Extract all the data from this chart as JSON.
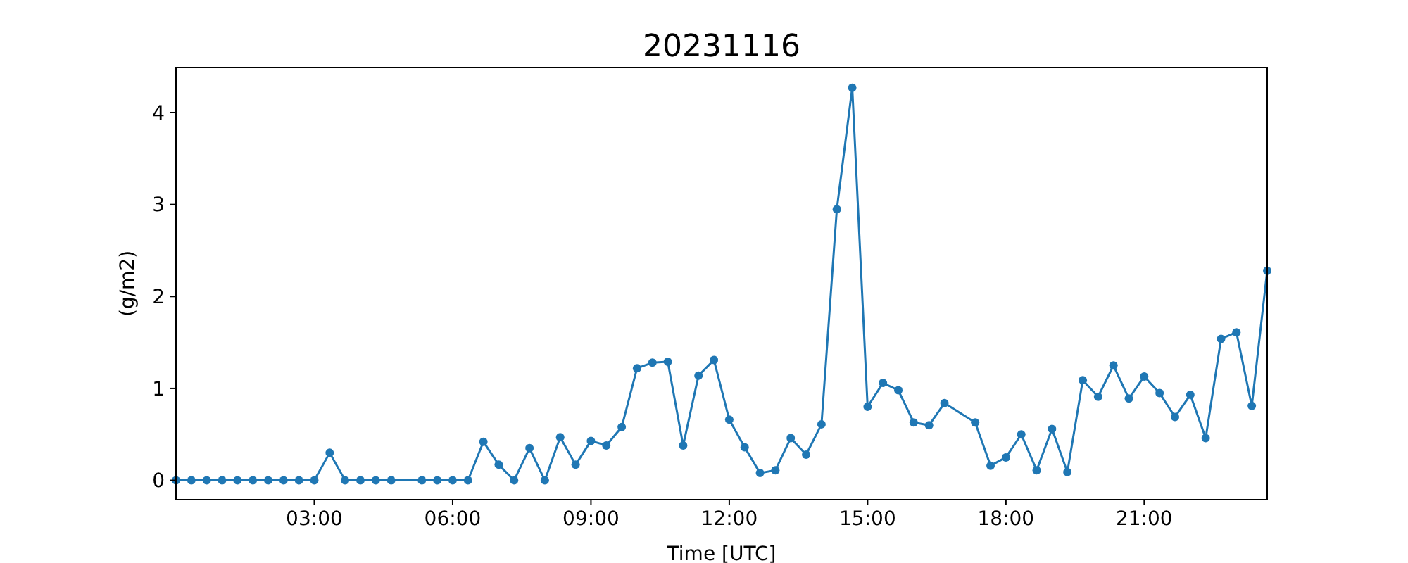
{
  "chart_data": {
    "type": "line",
    "title": "20231116",
    "xlabel": "Time [UTC]",
    "ylabel": "(g/m2)",
    "x": [
      0,
      0.333,
      0.667,
      1,
      1.333,
      1.667,
      2,
      2.333,
      2.667,
      3,
      3.333,
      3.667,
      4,
      4.333,
      4.667,
      5.333,
      5.667,
      6,
      6.333,
      6.667,
      7,
      7.333,
      7.667,
      8,
      8.333,
      8.667,
      9,
      9.333,
      9.667,
      10,
      10.333,
      10.667,
      11,
      11.333,
      11.667,
      12,
      12.333,
      12.667,
      13,
      13.333,
      13.667,
      14,
      14.333,
      14.667,
      15,
      15.333,
      15.667,
      16,
      16.333,
      16.667,
      17.333,
      17.667,
      18,
      18.333,
      18.667,
      19,
      19.333,
      19.667,
      20,
      20.333,
      20.667,
      21,
      21.333,
      21.667,
      22,
      22.333,
      22.667,
      23,
      23.333,
      23.667
    ],
    "series": [
      {
        "color": "#1f77b4",
        "values": [
          0,
          0,
          0,
          0,
          0,
          0,
          0,
          0,
          0,
          0,
          0.3,
          0,
          0,
          0,
          0,
          0,
          0,
          0,
          0,
          0.42,
          0.17,
          0,
          0.35,
          0,
          0.47,
          0.17,
          0.43,
          0.38,
          0.58,
          1.22,
          1.28,
          1.29,
          0.38,
          1.14,
          1.31,
          0.66,
          0.36,
          0.08,
          0.11,
          0.46,
          0.28,
          0.61,
          2.95,
          4.27,
          0.8,
          1.06,
          0.98,
          0.63,
          0.6,
          0.84,
          0.63,
          0.16,
          0.25,
          0.5,
          0.11,
          0.56,
          0.09,
          1.09,
          0.91,
          1.25,
          0.89,
          1.13,
          0.95,
          0.69,
          0.93,
          0.46,
          1.54,
          1.61,
          0.81,
          2.28
        ]
      }
    ],
    "xlim": [
      0,
      23.667
    ],
    "xticks": [
      {
        "value": 3,
        "label": "03:00"
      },
      {
        "value": 6,
        "label": "06:00"
      },
      {
        "value": 9,
        "label": "09:00"
      },
      {
        "value": 12,
        "label": "12:00"
      },
      {
        "value": 15,
        "label": "15:00"
      },
      {
        "value": 18,
        "label": "18:00"
      },
      {
        "value": 21,
        "label": "21:00"
      }
    ],
    "ylim": [
      -0.21,
      4.49
    ],
    "yticks": [
      0,
      1,
      2,
      3,
      4
    ],
    "marker": "circle",
    "line_style": "solid"
  }
}
